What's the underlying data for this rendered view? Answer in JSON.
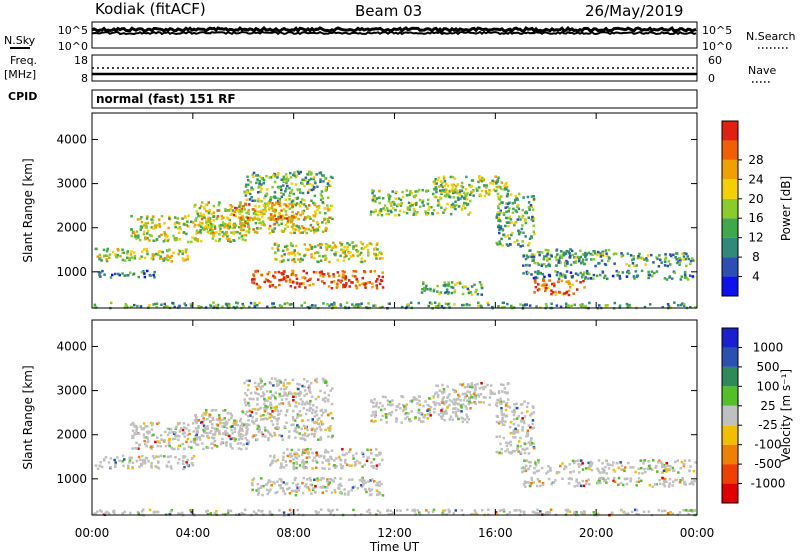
{
  "header": {
    "radar": "Kodiak (fitACF)",
    "beam": "Beam 03",
    "date": "26/May/2019"
  },
  "panels": {
    "nsky_label": "N.Sky",
    "nsearch_label": "N.Search",
    "nsky_ticks": [
      "10^5",
      "10^0"
    ],
    "nsearch_ticks": [
      "10^5",
      "10^0"
    ],
    "freq_label": "Freq.",
    "freq_unit": "[MHz]",
    "freq_ticks": [
      "18",
      "8"
    ],
    "nave_label": "Nave",
    "nave_ticks": [
      "60",
      "0"
    ],
    "cpid_label": "CPID",
    "cpid_text": "normal (fast) 151 RF"
  },
  "chart_data": [
    {
      "type": "heatmap",
      "ylabel": "Slant Range [km]",
      "xlabel": "Time UT",
      "x_ticks": [
        "00:00",
        "04:00",
        "08:00",
        "12:00",
        "16:00",
        "20:00",
        "00:00"
      ],
      "x_range_hours": [
        0,
        24
      ],
      "ylim": [
        180,
        4600
      ],
      "y_ticks": [
        1000,
        2000,
        3000,
        4000
      ],
      "colorbar": {
        "label": "Power [dB]",
        "ticks": [
          "4",
          "8",
          "12",
          "16",
          "20",
          "24",
          "28"
        ],
        "range": [
          0,
          30
        ],
        "colors": [
          "#1010ee",
          "#2d4fb4",
          "#2f8a7a",
          "#3ea84a",
          "#8ccc2a",
          "#f4d000",
          "#f0a000",
          "#f06000",
          "#e02010"
        ]
      },
      "echo_regions": [
        {
          "t": [
            0.1,
            4.0
          ],
          "r": [
            1250,
            1550
          ],
          "level": 0.55
        },
        {
          "t": [
            0.1,
            2.5
          ],
          "r": [
            900,
            1050
          ],
          "level": 0.25
        },
        {
          "t": [
            1.5,
            6.2
          ],
          "r": [
            1700,
            2300
          ],
          "level": 0.55
        },
        {
          "t": [
            4.0,
            9.5
          ],
          "r": [
            1900,
            2600
          ],
          "level": 0.6
        },
        {
          "t": [
            5.5,
            8.0
          ],
          "r": [
            2200,
            2600
          ],
          "level": 0.7
        },
        {
          "t": [
            6.0,
            9.5
          ],
          "r": [
            2600,
            3300
          ],
          "level": 0.4
        },
        {
          "t": [
            7.0,
            11.5
          ],
          "r": [
            1250,
            1700
          ],
          "level": 0.55
        },
        {
          "t": [
            6.3,
            11.5
          ],
          "r": [
            650,
            1050
          ],
          "level": 0.9
        },
        {
          "t": [
            11.0,
            15.0
          ],
          "r": [
            2300,
            2900
          ],
          "level": 0.45
        },
        {
          "t": [
            13.5,
            16.5
          ],
          "r": [
            2700,
            3200
          ],
          "level": 0.5
        },
        {
          "t": [
            16.0,
            17.5
          ],
          "r": [
            1600,
            2800
          ],
          "level": 0.4
        },
        {
          "t": [
            17.0,
            20.5
          ],
          "r": [
            1350,
            1550
          ],
          "level": 0.35
        },
        {
          "t": [
            17.0,
            23.9
          ],
          "r": [
            1150,
            1450
          ],
          "level": 0.35
        },
        {
          "t": [
            17.0,
            23.9
          ],
          "r": [
            850,
            1050
          ],
          "level": 0.3
        },
        {
          "t": [
            17.5,
            19.5
          ],
          "r": [
            500,
            850
          ],
          "level": 0.85
        },
        {
          "t": [
            13.0,
            15.5
          ],
          "r": [
            500,
            800
          ],
          "level": 0.4
        },
        {
          "t": [
            0.0,
            23.9
          ],
          "r": [
            200,
            330
          ],
          "level": 0.35
        }
      ]
    },
    {
      "type": "heatmap",
      "ylabel": "Slant Range [km]",
      "xlabel": "Time UT",
      "x_ticks": [
        "00:00",
        "04:00",
        "08:00",
        "12:00",
        "16:00",
        "20:00",
        "00:00"
      ],
      "x_range_hours": [
        0,
        24
      ],
      "ylim": [
        180,
        4600
      ],
      "y_ticks": [
        1000,
        2000,
        3000,
        4000
      ],
      "colorbar": {
        "label": "Velocity [m s^-1]",
        "ticks": [
          "1000",
          "500",
          "100",
          "25",
          "-25",
          "-100",
          "-500",
          "-1000"
        ],
        "colors": [
          "#1a20d0",
          "#2a50b0",
          "#2f8a5a",
          "#54c028",
          "#c0c0c0",
          "#f0c000",
          "#f08000",
          "#f04000",
          "#e00000"
        ]
      },
      "echo_regions": [
        {
          "t": [
            0.1,
            4.0
          ],
          "r": [
            1250,
            1550
          ],
          "level": 0.5
        },
        {
          "t": [
            1.5,
            6.2
          ],
          "r": [
            1700,
            2300
          ],
          "level": 0.5
        },
        {
          "t": [
            4.0,
            9.5
          ],
          "r": [
            1900,
            2600
          ],
          "level": 0.5
        },
        {
          "t": [
            6.0,
            9.5
          ],
          "r": [
            2600,
            3300
          ],
          "level": 0.5
        },
        {
          "t": [
            7.0,
            11.5
          ],
          "r": [
            1250,
            1700
          ],
          "level": 0.5
        },
        {
          "t": [
            6.3,
            11.5
          ],
          "r": [
            650,
            1050
          ],
          "level": 0.5
        },
        {
          "t": [
            11.0,
            15.0
          ],
          "r": [
            2300,
            2900
          ],
          "level": 0.5
        },
        {
          "t": [
            13.5,
            16.5
          ],
          "r": [
            2700,
            3200
          ],
          "level": 0.5
        },
        {
          "t": [
            16.0,
            17.5
          ],
          "r": [
            1600,
            2800
          ],
          "level": 0.5
        },
        {
          "t": [
            17.0,
            23.9
          ],
          "r": [
            1150,
            1450
          ],
          "level": 0.5
        },
        {
          "t": [
            17.0,
            23.9
          ],
          "r": [
            850,
            1050
          ],
          "level": 0.5
        },
        {
          "t": [
            0.0,
            23.9
          ],
          "r": [
            200,
            330
          ],
          "level": 0.5
        }
      ]
    }
  ]
}
